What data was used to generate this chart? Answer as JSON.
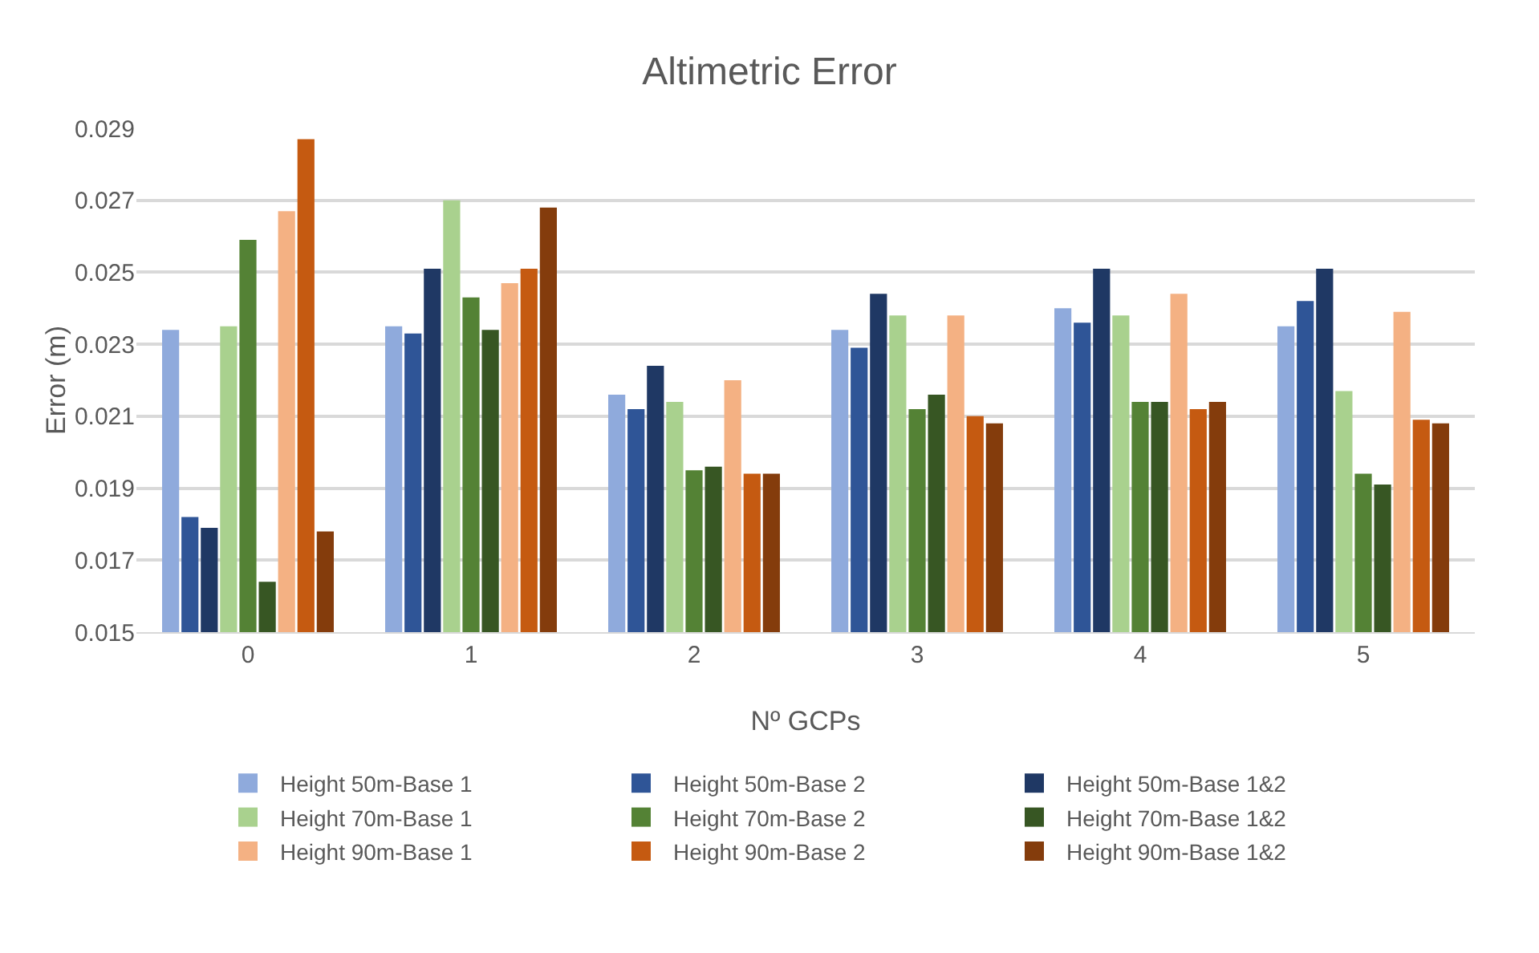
{
  "chart_data": {
    "type": "bar",
    "title": "Altimetric Error",
    "xlabel": "Nº GCPs",
    "ylabel": "Error (m)",
    "categories": [
      "0",
      "1",
      "2",
      "3",
      "4",
      "5"
    ],
    "series": [
      {
        "name": "Height 50m-Base 1",
        "color": "#8faadc",
        "values": [
          0.0234,
          0.0235,
          0.0216,
          0.0234,
          0.024,
          0.0235
        ]
      },
      {
        "name": "Height 50m-Base 2",
        "color": "#2f5597",
        "values": [
          0.0182,
          0.0233,
          0.0212,
          0.0229,
          0.0236,
          0.0242
        ]
      },
      {
        "name": "Height 50m-Base 1&2",
        "color": "#1f3864",
        "values": [
          0.0179,
          0.0251,
          0.0224,
          0.0244,
          0.0251,
          0.0251
        ]
      },
      {
        "name": "Height 70m-Base 1",
        "color": "#a9d18e",
        "values": [
          0.0235,
          0.027,
          0.0214,
          0.0238,
          0.0238,
          0.0217
        ]
      },
      {
        "name": "Height 70m-Base 2",
        "color": "#548235",
        "values": [
          0.0259,
          0.0243,
          0.0195,
          0.0212,
          0.0214,
          0.0194
        ]
      },
      {
        "name": "Height 70m-Base 1&2",
        "color": "#375623",
        "values": [
          0.0164,
          0.0234,
          0.0196,
          0.0216,
          0.0214,
          0.0191
        ]
      },
      {
        "name": "Height 90m-Base 1",
        "color": "#f4b183",
        "values": [
          0.0267,
          0.0247,
          0.022,
          0.0238,
          0.0244,
          0.0239
        ]
      },
      {
        "name": "Height 90m-Base 2",
        "color": "#c55a11",
        "values": [
          0.0287,
          0.0251,
          0.0194,
          0.021,
          0.0212,
          0.0209
        ]
      },
      {
        "name": "Height 90m-Base 1&2",
        "color": "#843c0c",
        "values": [
          0.0178,
          0.0268,
          0.0194,
          0.0208,
          0.0214,
          0.0208
        ]
      }
    ],
    "ylim": [
      0.015,
      0.029
    ],
    "yticks": [
      0.015,
      0.017,
      0.019,
      0.021,
      0.023,
      0.025,
      0.027,
      0.029
    ],
    "grid": "y",
    "legend": "bottom"
  }
}
